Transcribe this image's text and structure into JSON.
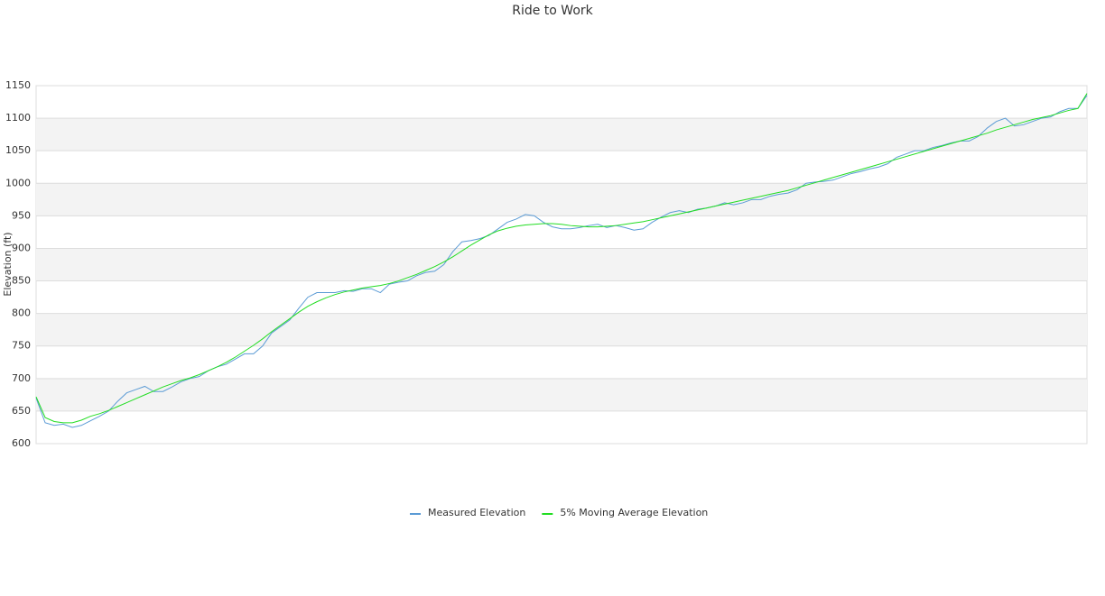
{
  "chart_data": {
    "type": "line",
    "title": "Ride to Work",
    "y_label": "Elevation (ft)",
    "ylim": [
      600,
      1150
    ],
    "yticks": [
      600,
      650,
      700,
      750,
      800,
      850,
      900,
      950,
      1000,
      1050,
      1100,
      1150
    ],
    "grid": true,
    "legend": "bottom",
    "series": [
      {
        "name": "Measured Elevation",
        "color": "#5b9bd5",
        "values": [
          670,
          632,
          628,
          630,
          625,
          628,
          635,
          642,
          650,
          665,
          678,
          683,
          688,
          680,
          680,
          687,
          695,
          700,
          703,
          712,
          718,
          722,
          730,
          738,
          738,
          750,
          770,
          780,
          790,
          808,
          825,
          832,
          832,
          832,
          835,
          834,
          838,
          838,
          832,
          845,
          848,
          850,
          858,
          863,
          865,
          875,
          895,
          910,
          912,
          915,
          920,
          930,
          940,
          945,
          952,
          950,
          940,
          933,
          930,
          930,
          932,
          935,
          937,
          932,
          935,
          932,
          928,
          930,
          940,
          948,
          955,
          958,
          955,
          960,
          962,
          965,
          970,
          967,
          970,
          975,
          975,
          980,
          983,
          985,
          990,
          1000,
          1002,
          1003,
          1005,
          1010,
          1015,
          1018,
          1022,
          1025,
          1030,
          1040,
          1045,
          1050,
          1050,
          1055,
          1058,
          1062,
          1065,
          1065,
          1072,
          1085,
          1095,
          1100,
          1088,
          1090,
          1095,
          1100,
          1102,
          1110,
          1115,
          1115,
          1135
        ]
      },
      {
        "name": "5% Moving Average Elevation",
        "color": "#22dd22",
        "values": [
          672,
          640,
          634,
          632,
          632,
          636,
          642,
          646,
          651,
          657,
          663,
          669,
          675,
          681,
          687,
          692,
          697,
          701,
          706,
          712,
          718,
          725,
          733,
          742,
          751,
          761,
          772,
          782,
          792,
          802,
          811,
          818,
          824,
          829,
          833,
          836,
          839,
          841,
          843,
          846,
          850,
          855,
          860,
          866,
          872,
          879,
          887,
          896,
          905,
          913,
          921,
          927,
          931,
          934,
          936,
          937,
          938,
          938,
          937,
          935,
          934,
          933,
          933,
          934,
          935,
          937,
          939,
          941,
          944,
          947,
          950,
          953,
          956,
          959,
          962,
          965,
          968,
          971,
          974,
          977,
          980,
          983,
          986,
          989,
          993,
          997,
          1001,
          1005,
          1009,
          1013,
          1017,
          1021,
          1025,
          1029,
          1033,
          1037,
          1041,
          1045,
          1049,
          1053,
          1057,
          1061,
          1065,
          1069,
          1073,
          1077,
          1082,
          1086,
          1090,
          1094,
          1098,
          1101,
          1104,
          1108,
          1112,
          1115,
          1138
        ]
      }
    ]
  }
}
